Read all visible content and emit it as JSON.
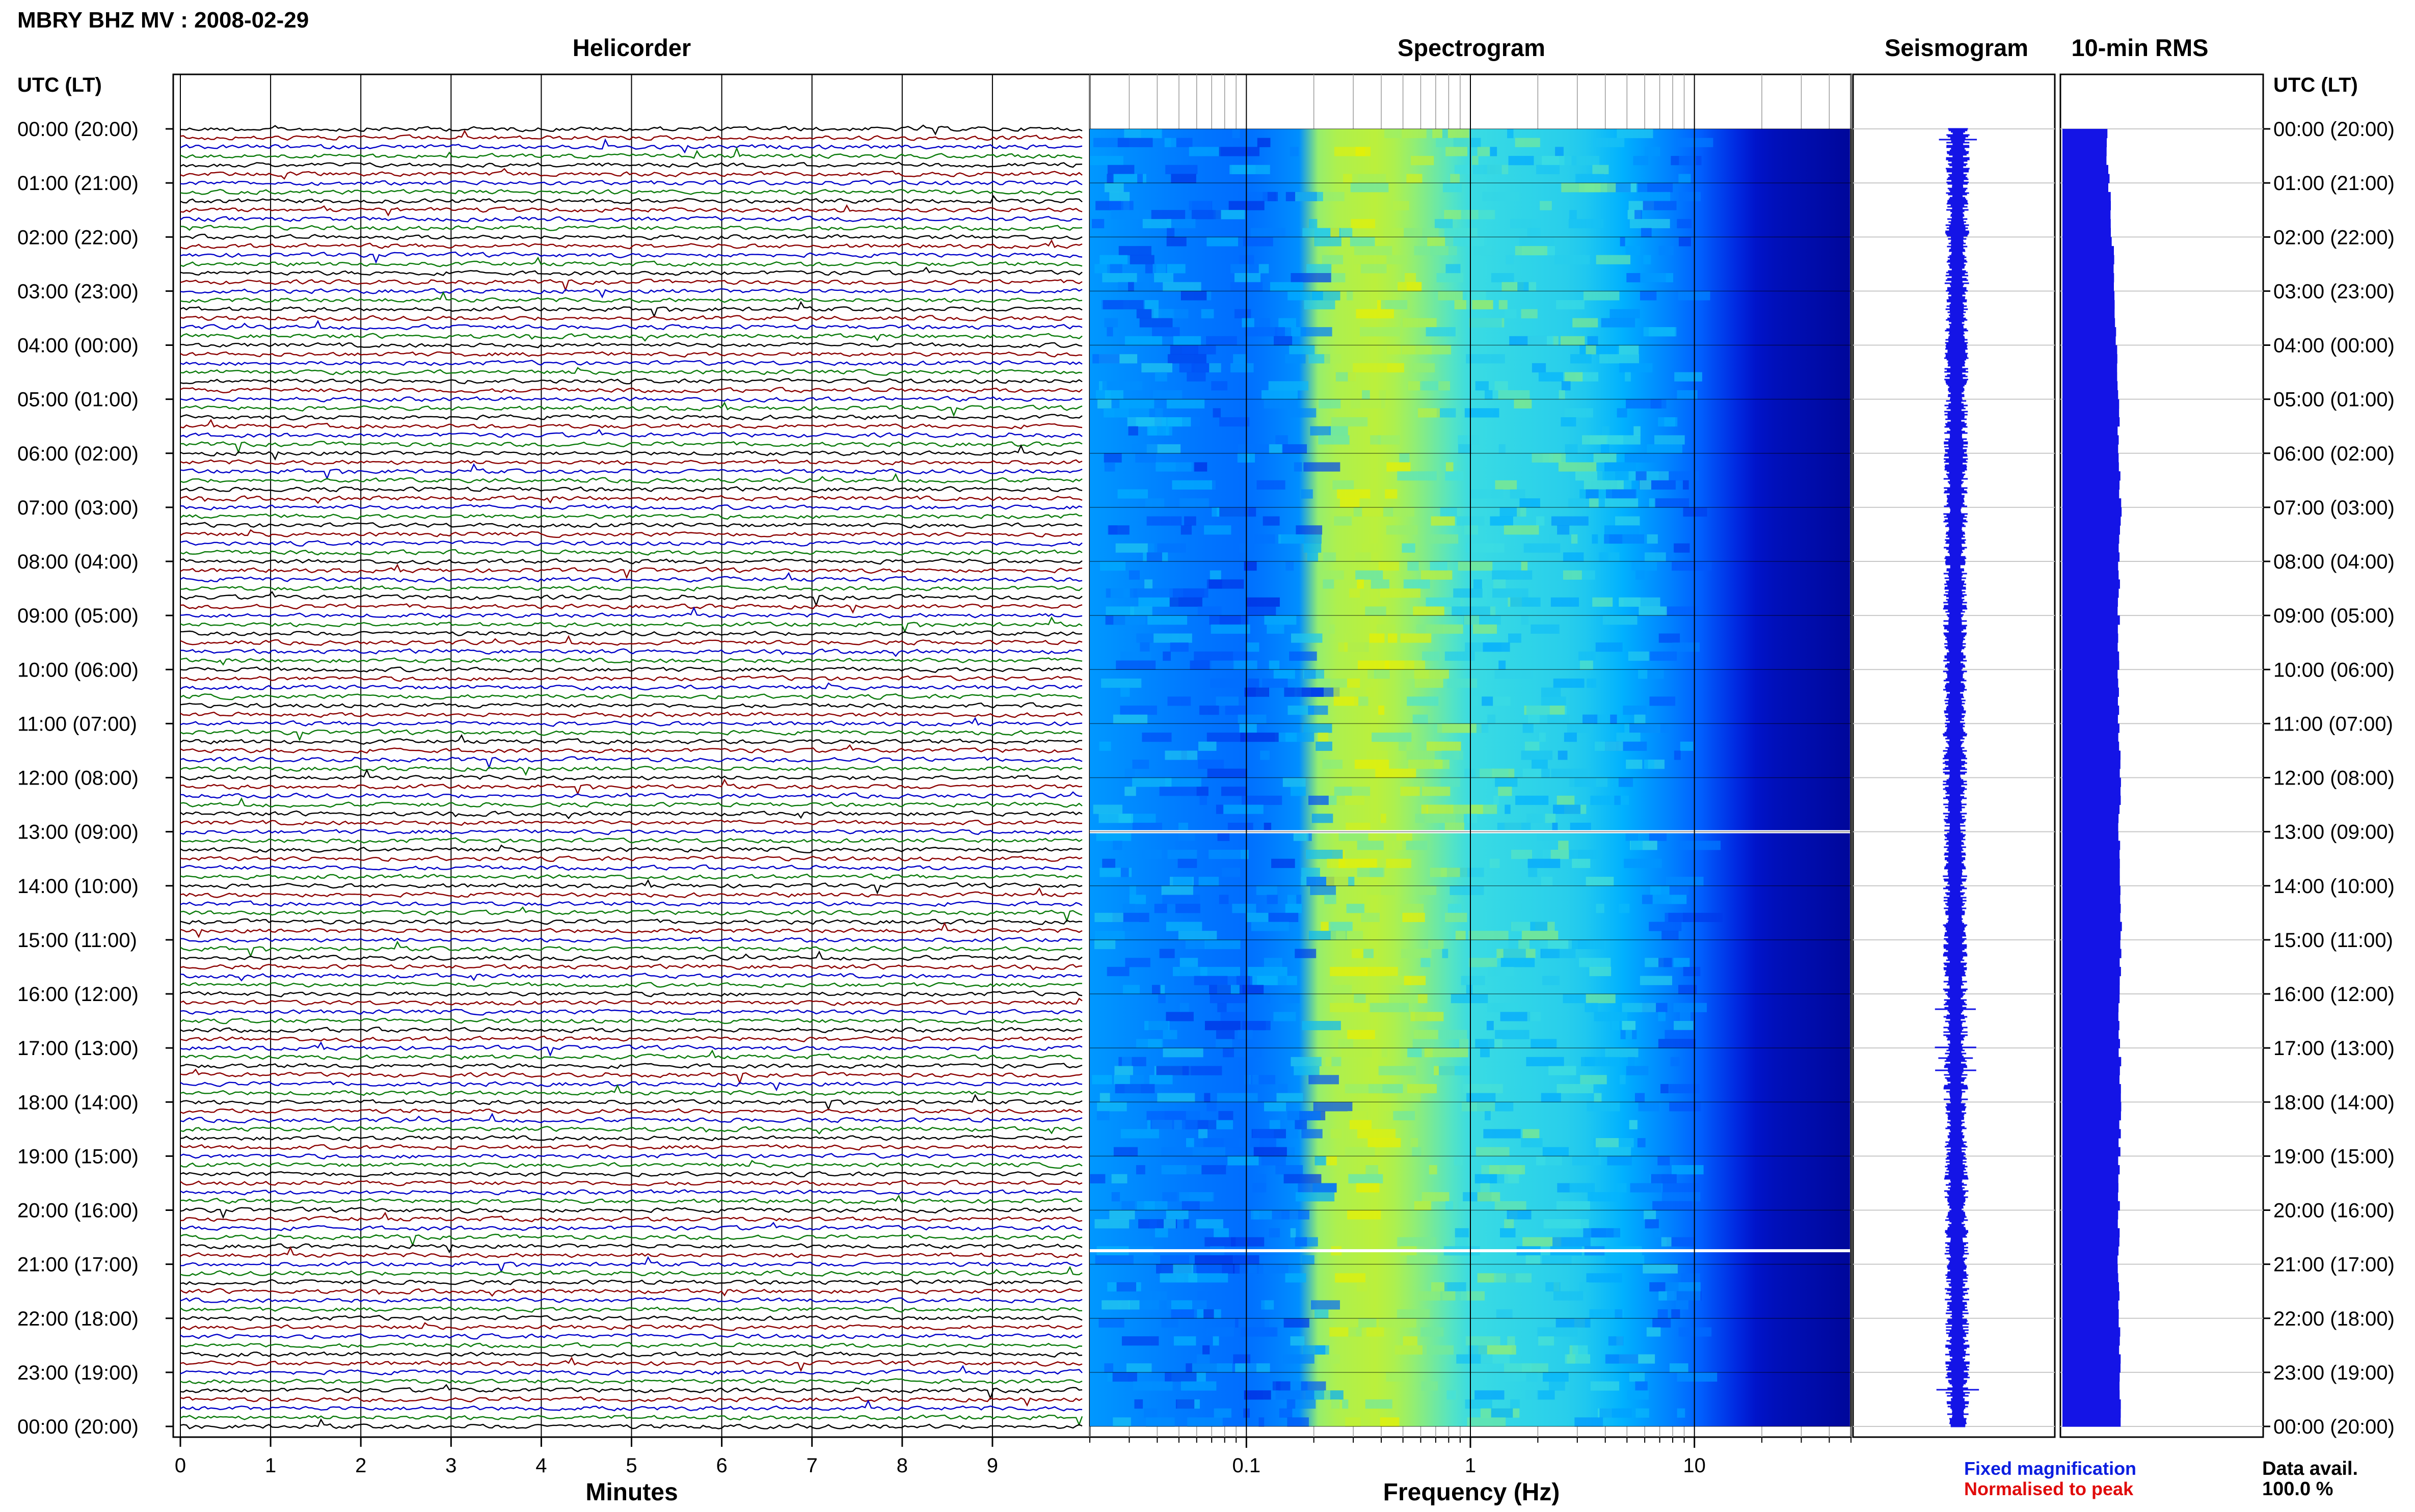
{
  "header": {
    "station_title": "MBRY BHZ MV : 2008-02-29"
  },
  "panels": {
    "helicorder": {
      "title": "Helicorder"
    },
    "spectrogram": {
      "title": "Spectrogram"
    },
    "seismogram": {
      "title": "Seismogram"
    },
    "rms": {
      "title": "10-min RMS"
    }
  },
  "time_axis": {
    "label": "UTC (LT)",
    "hours": [
      "00:00 (20:00)",
      "01:00 (21:00)",
      "02:00 (22:00)",
      "03:00 (23:00)",
      "04:00 (00:00)",
      "05:00 (01:00)",
      "06:00 (02:00)",
      "07:00 (03:00)",
      "08:00 (04:00)",
      "09:00 (05:00)",
      "10:00 (06:00)",
      "11:00 (07:00)",
      "12:00 (08:00)",
      "13:00 (09:00)",
      "14:00 (10:00)",
      "15:00 (11:00)",
      "16:00 (12:00)",
      "17:00 (13:00)",
      "18:00 (14:00)",
      "19:00 (15:00)",
      "20:00 (16:00)",
      "21:00 (17:00)",
      "22:00 (18:00)",
      "23:00 (19:00)",
      "00:00 (20:00)"
    ]
  },
  "legend": {
    "fixed": "Fixed magnification",
    "normalised": "Normalised to peak",
    "fixed_color": "#0b1ee0",
    "normalised_color": "#e00b0b"
  },
  "availability": {
    "label": "Data avail.",
    "value": "100.0 %"
  },
  "chart_data": [
    {
      "type": "line",
      "name": "helicorder",
      "title": "Helicorder",
      "xlabel": "Minutes",
      "ylabel": "UTC (LT)",
      "x_ticks": [
        "0",
        "1",
        "2",
        "3",
        "4",
        "5",
        "6",
        "7",
        "8",
        "9"
      ],
      "xlim": [
        0,
        10
      ],
      "rows_per_hour": 6,
      "hours": 24,
      "trace_colors": [
        "#000000",
        "#8b0000",
        "#0000c8",
        "#0a7a0a"
      ],
      "grid": true
    },
    {
      "type": "heatmap",
      "name": "spectrogram",
      "title": "Spectrogram",
      "xlabel": "Frequency (Hz)",
      "x_scale": "log",
      "xlim": [
        0.02,
        50
      ],
      "x_ticks": [
        "0.1",
        "1",
        "10"
      ],
      "colormap": [
        "#000080",
        "#0018d8",
        "#0060ff",
        "#00b0ff",
        "#40e0e0",
        "#a0f060",
        "#e8f000"
      ],
      "band_profile": [
        {
          "f": 0.02,
          "level": 0.45
        },
        {
          "f": 0.06,
          "level": 0.38
        },
        {
          "f": 0.1,
          "level": 0.36
        },
        {
          "f": 0.2,
          "level": 0.45
        },
        {
          "f": 0.21,
          "level": 0.85
        },
        {
          "f": 0.4,
          "level": 0.9
        },
        {
          "f": 1,
          "level": 0.65
        },
        {
          "f": 3,
          "level": 0.6
        },
        {
          "f": 10,
          "level": 0.35
        },
        {
          "f": 20,
          "level": 0.12
        },
        {
          "f": 50,
          "level": 0.05
        }
      ],
      "data_gaps_utc": [
        "13:00",
        "20:45"
      ]
    },
    {
      "type": "line",
      "name": "seismogram",
      "title": "Seismogram",
      "color": "#1414e6"
    },
    {
      "type": "bar",
      "name": "rms",
      "title": "10-min RMS",
      "color": "#1414e6",
      "hourly_values": [
        0.72,
        0.76,
        0.82,
        0.85,
        0.88,
        0.91,
        0.93,
        0.95,
        0.93,
        0.92,
        0.91,
        0.93,
        0.94,
        0.93,
        0.96,
        0.95,
        0.93,
        0.94,
        0.95,
        0.93,
        0.92,
        0.92,
        0.93,
        0.94,
        0.95
      ]
    }
  ]
}
